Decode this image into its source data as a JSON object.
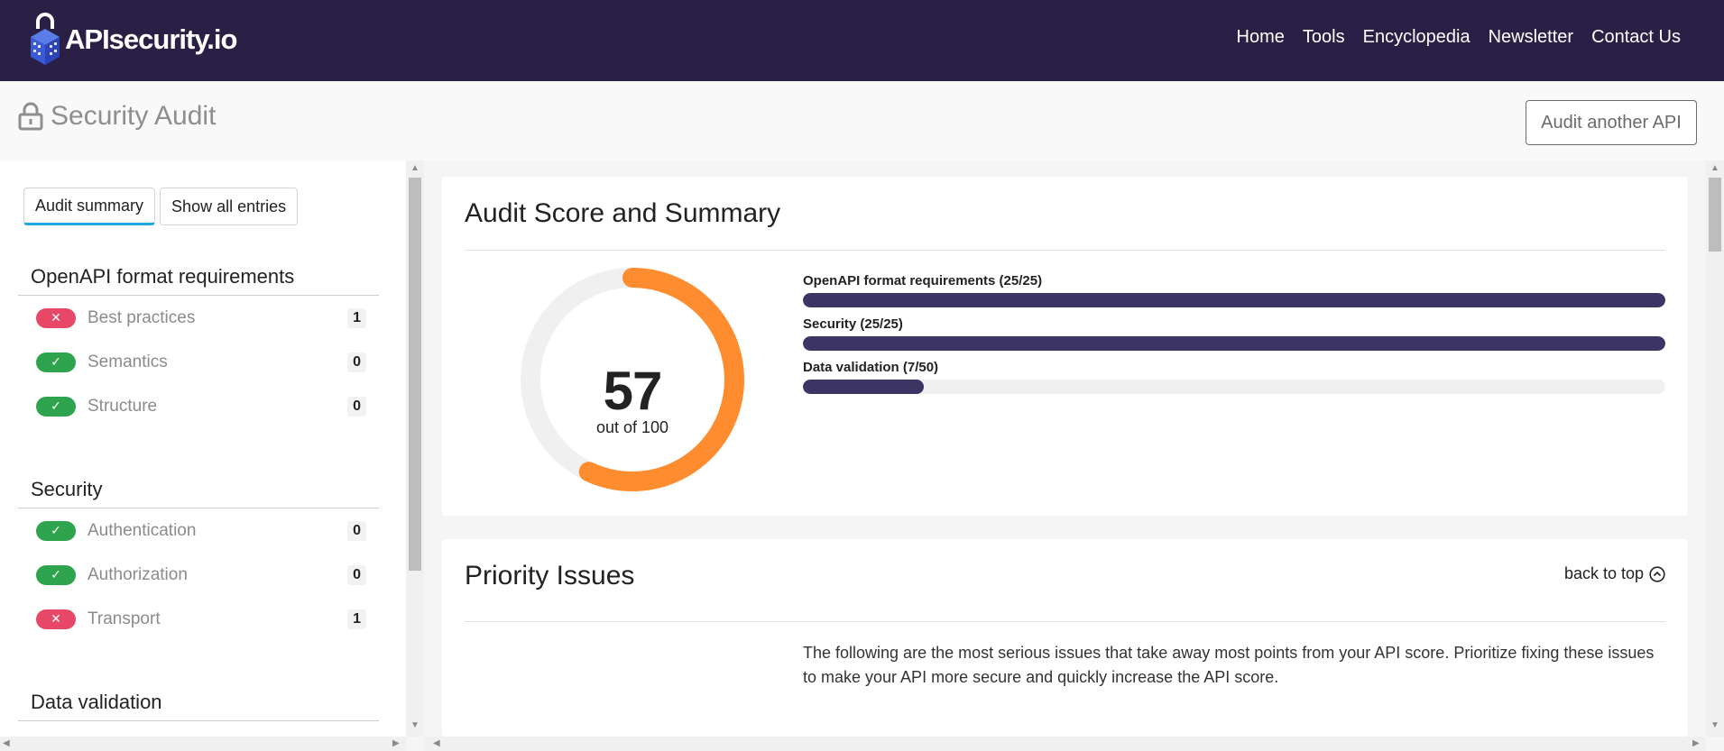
{
  "brand": {
    "name": "APIsecurity.io"
  },
  "nav": {
    "items": [
      "Home",
      "Tools",
      "Encyclopedia",
      "Newsletter",
      "Contact Us"
    ]
  },
  "header": {
    "title": "Security Audit",
    "audit_button": "Audit another API"
  },
  "sidebar": {
    "tabs": [
      "Audit summary",
      "Show all entries"
    ],
    "sections": [
      {
        "title": "OpenAPI format requirements",
        "items": [
          {
            "label": "Best practices",
            "status": "fail",
            "count": "1"
          },
          {
            "label": "Semantics",
            "status": "pass",
            "count": "0"
          },
          {
            "label": "Structure",
            "status": "pass",
            "count": "0"
          }
        ]
      },
      {
        "title": "Security",
        "items": [
          {
            "label": "Authentication",
            "status": "pass",
            "count": "0"
          },
          {
            "label": "Authorization",
            "status": "pass",
            "count": "0"
          },
          {
            "label": "Transport",
            "status": "fail",
            "count": "1"
          }
        ]
      },
      {
        "title": "Data validation",
        "items": []
      }
    ]
  },
  "summary": {
    "title": "Audit Score and Summary",
    "score": "57",
    "score_label": "out of 100",
    "score_fraction": 0.57,
    "bars": [
      {
        "label": "OpenAPI format requirements (25/25)",
        "fraction": 1.0
      },
      {
        "label": "Security (25/25)",
        "fraction": 1.0
      },
      {
        "label": "Data validation (7/50)",
        "fraction": 0.14
      }
    ]
  },
  "priority": {
    "title": "Priority Issues",
    "back_to_top": "back to top",
    "description": "The following are the most serious issues that take away most points from your API score. Prioritize fixing these issues to make your API more secure and quickly increase the API score."
  },
  "colors": {
    "navbar": "#2a2046",
    "score_arc": "#ff8c2e",
    "bar_fill": "#3c3463",
    "fail": "#e74867",
    "pass": "#2fa44f",
    "tab_underline": "#1ea7e0"
  },
  "icons": [
    "logo-cube-icon",
    "lock-icon",
    "x-icon",
    "check-icon",
    "chevron-up-circle-icon"
  ]
}
